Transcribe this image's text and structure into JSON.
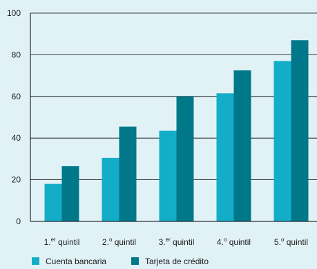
{
  "chart_data": {
    "type": "bar",
    "title": "",
    "xlabel": "",
    "ylabel": "",
    "categories": [
      {
        "main": "1.",
        "sup": "er",
        "rest": " quintil"
      },
      {
        "main": "2.",
        "sup": "o",
        "rest": " quintil"
      },
      {
        "main": "3.",
        "sup": "er",
        "rest": " quintil"
      },
      {
        "main": "4.",
        "sup": "o",
        "rest": " quintil"
      },
      {
        "main": "5.",
        "sup": "o",
        "rest": " quintil"
      }
    ],
    "series": [
      {
        "name": "Cuenta bancaria",
        "values": [
          18,
          30.5,
          43.5,
          61.5,
          77
        ],
        "color": "#14adc7"
      },
      {
        "name": "Tarjeta de crédito",
        "values": [
          26.5,
          45.5,
          60,
          72.5,
          87
        ],
        "color": "#00788a"
      }
    ],
    "ylim": [
      0,
      100
    ],
    "yticks": [
      0,
      20,
      40,
      60,
      80,
      100
    ],
    "grid": true,
    "legend": "bottom-left"
  }
}
